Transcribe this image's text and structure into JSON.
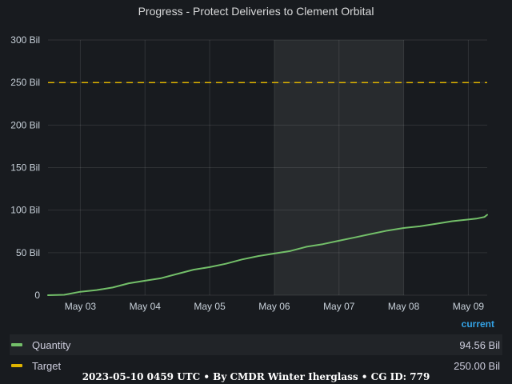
{
  "chart_data": {
    "type": "line",
    "title": "Progress - Protect Deliveries to Clement Orbital",
    "y_ticks": [
      "0",
      "50 Bil",
      "100 Bil",
      "150 Bil",
      "200 Bil",
      "250 Bil",
      "300 Bil"
    ],
    "ylim": [
      0,
      300
    ],
    "y_unit": "Bil",
    "x_ticks": [
      "May 03",
      "May 04",
      "May 05",
      "May 06",
      "May 07",
      "May 08",
      "May 09"
    ],
    "x_range": [
      "2023-05-02 12:00",
      "2023-05-09 07:00"
    ],
    "grid": true,
    "highlight_region": [
      "2023-05-06",
      "2023-05-08"
    ],
    "legend_placement": "bottom",
    "legend_column": "current",
    "series": [
      {
        "name": "Quantity",
        "color": "#73bf69",
        "style": "solid",
        "current": "94.56 Bil",
        "x": [
          "2023-05-02 12:00",
          "2023-05-02 18:00",
          "2023-05-03 00:00",
          "2023-05-03 06:00",
          "2023-05-03 12:00",
          "2023-05-03 18:00",
          "2023-05-04 00:00",
          "2023-05-04 06:00",
          "2023-05-04 12:00",
          "2023-05-04 18:00",
          "2023-05-05 00:00",
          "2023-05-05 06:00",
          "2023-05-05 12:00",
          "2023-05-05 18:00",
          "2023-05-06 00:00",
          "2023-05-06 06:00",
          "2023-05-06 12:00",
          "2023-05-06 18:00",
          "2023-05-07 00:00",
          "2023-05-07 06:00",
          "2023-05-07 12:00",
          "2023-05-07 18:00",
          "2023-05-08 00:00",
          "2023-05-08 06:00",
          "2023-05-08 12:00",
          "2023-05-08 18:00",
          "2023-05-09 00:00",
          "2023-05-09 03:00",
          "2023-05-09 06:00",
          "2023-05-09 07:00"
        ],
        "values": [
          0,
          0.5,
          4,
          6,
          9,
          14,
          17,
          20,
          25,
          30,
          33,
          37,
          42,
          46,
          49,
          52,
          57,
          60,
          64,
          68,
          72,
          76,
          79,
          81,
          84,
          87,
          89,
          90,
          92,
          94.56
        ]
      },
      {
        "name": "Target",
        "color": "#e0b400",
        "style": "dashed",
        "current": "250.00 Bil",
        "x": [
          "2023-05-02 12:00",
          "2023-05-09 07:00"
        ],
        "values": [
          250,
          250
        ]
      }
    ]
  },
  "footer": {
    "text": "2023-05-10 0459 UTC • By CMDR Winter Iherglass • CG ID: 779"
  }
}
